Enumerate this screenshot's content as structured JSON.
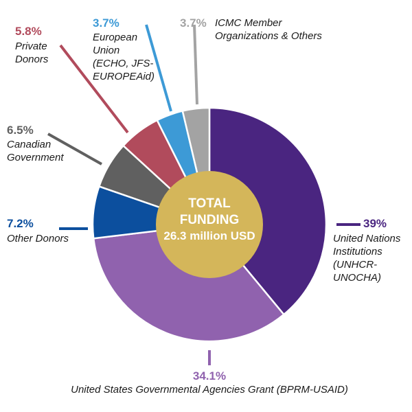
{
  "chart_data": {
    "type": "pie",
    "variant": "donut",
    "center_label": {
      "line1": "TOTAL",
      "line2": "FUNDING",
      "line3": "26.3 million USD"
    },
    "slices": [
      {
        "value": 39,
        "percent_label": "39%",
        "label_lines": [
          "United Nations",
          "Institutions",
          "(UNHCR-",
          "UNOCHA)"
        ],
        "color": "#4a2580"
      },
      {
        "value": 34.1,
        "percent_label": "34.1%",
        "label_lines": [
          "United States Governmental Agencies Grant (BPRM-USAID)"
        ],
        "color": "#9062ae"
      },
      {
        "value": 7.2,
        "percent_label": "7.2%",
        "label_lines": [
          "Other Donors"
        ],
        "color": "#0c4f9e"
      },
      {
        "value": 6.5,
        "percent_label": "6.5%",
        "label_lines": [
          "Canadian",
          "Government"
        ],
        "color": "#606060"
      },
      {
        "value": 5.8,
        "percent_label": "5.8%",
        "label_lines": [
          "Private",
          "Donors"
        ],
        "color": "#b14b5c"
      },
      {
        "value": 3.7,
        "percent_label": "3.7%",
        "label_lines": [
          "European",
          "Union",
          "(ECHO, JFS-",
          "EUROPEAid)"
        ],
        "color": "#3d9ad6"
      },
      {
        "value": 3.7,
        "percent_label": "3.7%",
        "label_lines": [
          "ICMC Member",
          "Organizations & Others"
        ],
        "color": "#a3a3a3"
      }
    ],
    "center_color": "#d4b65a",
    "legend": "none"
  }
}
